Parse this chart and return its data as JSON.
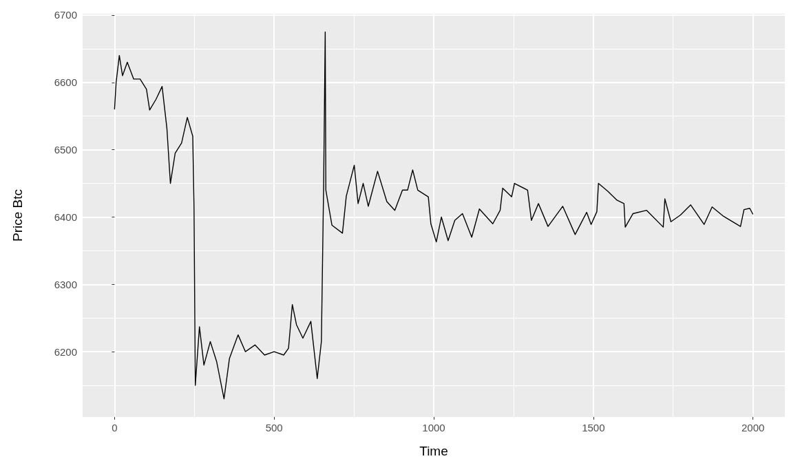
{
  "chart_data": {
    "type": "line",
    "xlabel": "Time",
    "ylabel": "Price Btc",
    "x": [
      0,
      5,
      15,
      25,
      40,
      60,
      80,
      100,
      110,
      130,
      149,
      164,
      175,
      190,
      210,
      228,
      245,
      249,
      253,
      266,
      280,
      300,
      320,
      343,
      360,
      387,
      410,
      440,
      470,
      500,
      530,
      545,
      557,
      570,
      590,
      615,
      635,
      648,
      655,
      660,
      662,
      681,
      714,
      726,
      751,
      763,
      779,
      795,
      824,
      853,
      878,
      902,
      918,
      934,
      950,
      983,
      991,
      1008,
      1024,
      1045,
      1066,
      1090,
      1119,
      1143,
      1185,
      1208,
      1216,
      1244,
      1253,
      1294,
      1306,
      1328,
      1358,
      1404,
      1443,
      1479,
      1493,
      1511,
      1516,
      1546,
      1574,
      1596,
      1600,
      1624,
      1667,
      1719,
      1724,
      1743,
      1773,
      1805,
      1847,
      1872,
      1908,
      1961,
      1972,
      1990,
      2000
    ],
    "series": [
      {
        "color": "#000000",
        "values": [
          6560,
          6600,
          6640,
          6610,
          6630,
          6605,
          6605,
          6590,
          6559,
          6575,
          6594,
          6532,
          6450,
          6495,
          6510,
          6548,
          6520,
          6416,
          6150,
          6237,
          6180,
          6215,
          6185,
          6130,
          6190,
          6225,
          6200,
          6210,
          6195,
          6200,
          6195,
          6205,
          6270,
          6240,
          6220,
          6245,
          6160,
          6215,
          6445,
          6675,
          6440,
          6388,
          6376,
          6431,
          6477,
          6420,
          6450,
          6416,
          6468,
          6423,
          6410,
          6440,
          6440,
          6470,
          6440,
          6430,
          6390,
          6363,
          6400,
          6365,
          6395,
          6405,
          6370,
          6412,
          6390,
          6410,
          6443,
          6430,
          6450,
          6440,
          6395,
          6420,
          6386,
          6416,
          6374,
          6407,
          6389,
          6408,
          6450,
          6438,
          6425,
          6420,
          6385,
          6405,
          6410,
          6385,
          6427,
          6393,
          6403,
          6418,
          6389,
          6415,
          6401,
          6386,
          6411,
          6413,
          6404
        ]
      }
    ],
    "xlim": [
      -100,
      2100
    ],
    "ylim": [
      6103,
      6702
    ],
    "xticks": [
      0,
      500,
      1000,
      1500,
      2000
    ],
    "yticks": [
      6200,
      6300,
      6400,
      6500,
      6600,
      6700
    ],
    "grid": true,
    "marker": "none",
    "line_style": "solid"
  }
}
